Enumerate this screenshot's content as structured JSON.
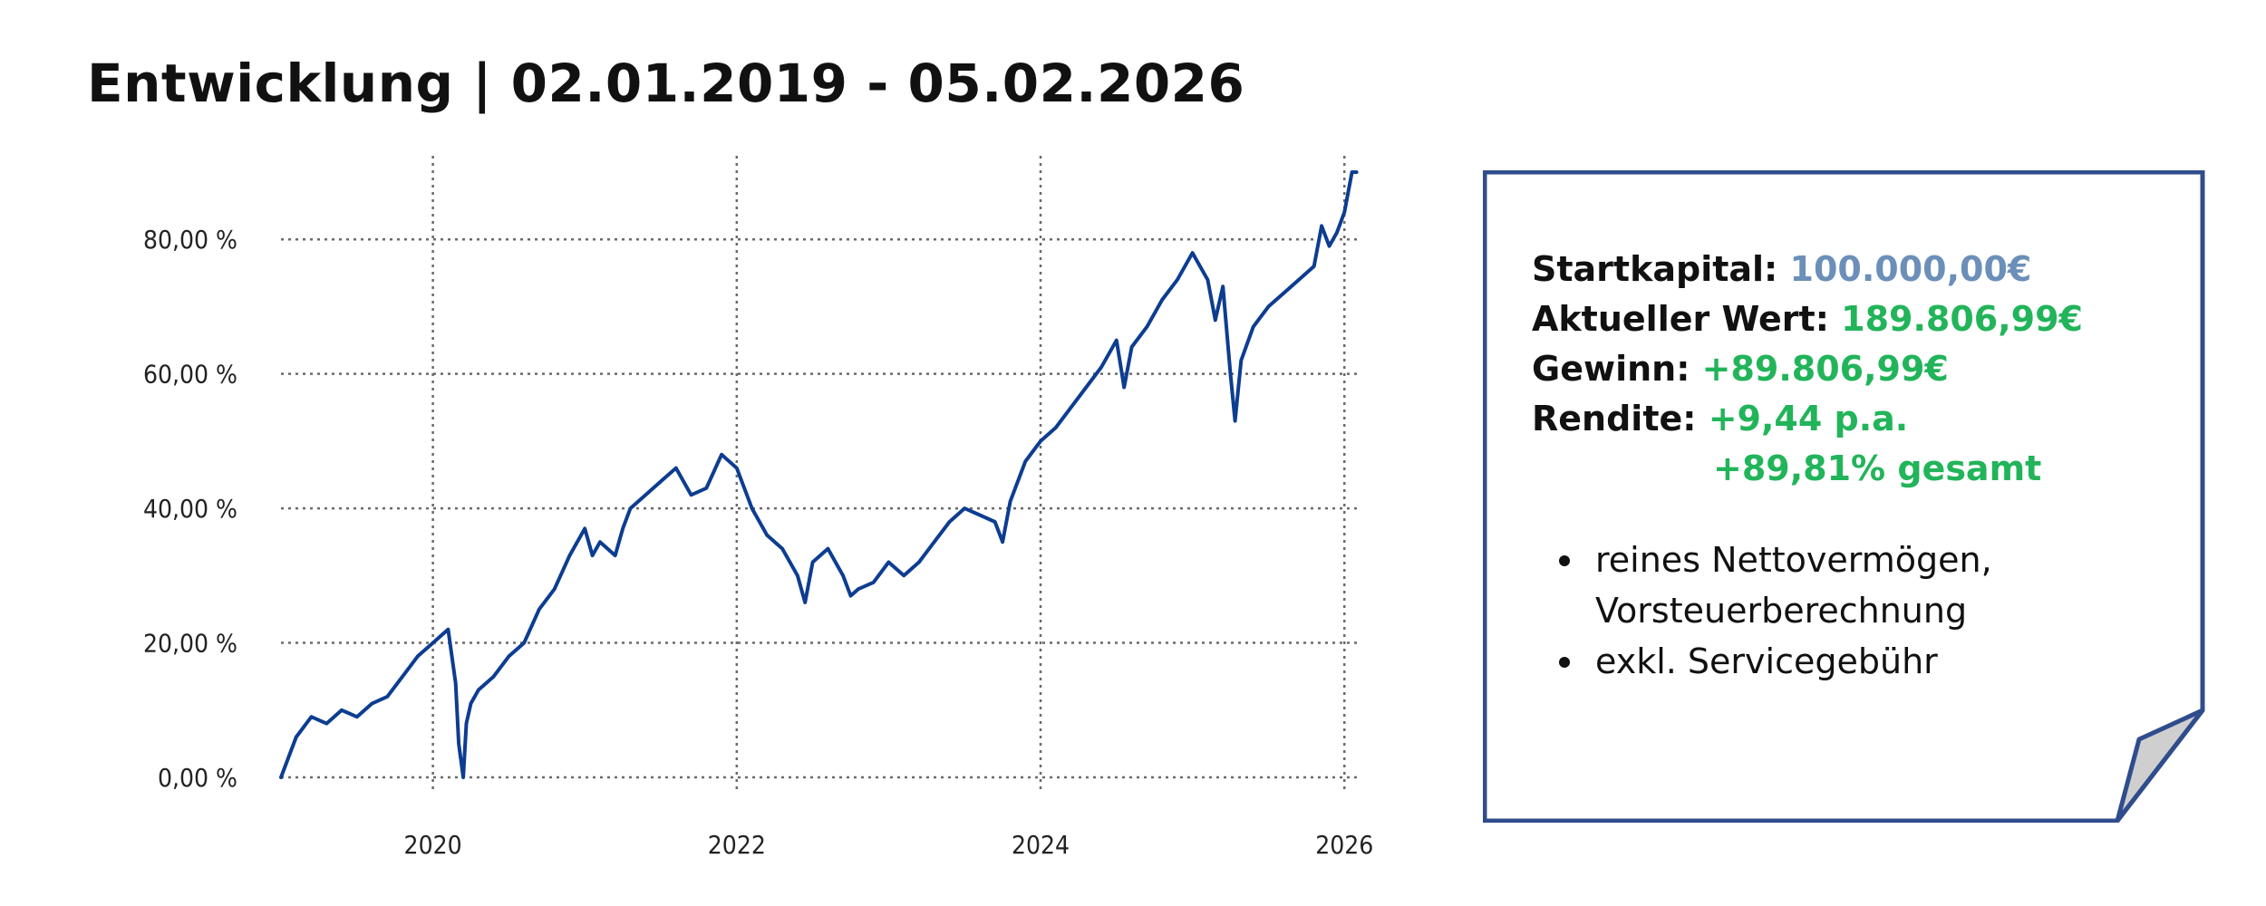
{
  "title": "Entwicklung | 02.01.2019 - 05.02.2026",
  "chart_data": {
    "type": "line",
    "title": "Entwicklung | 02.01.2019 - 05.02.2026",
    "xlabel": "",
    "ylabel": "",
    "xlim": [
      2019.0,
      2026.1
    ],
    "ylim": [
      0,
      90
    ],
    "grid": true,
    "x_ticks": [
      2020,
      2022,
      2024,
      2026
    ],
    "x_tick_labels": [
      "2020",
      "2022",
      "2024",
      "2026"
    ],
    "y_ticks": [
      0,
      20,
      40,
      60,
      80
    ],
    "y_tick_labels": [
      "0,00 %",
      "20,00 %",
      "40,00 %",
      "60,00 %",
      "80,00 %"
    ],
    "line_color": "#0d3d91",
    "series": [
      {
        "x": [
          2019.0,
          2019.05,
          2019.1,
          2019.2,
          2019.3,
          2019.4,
          2019.5,
          2019.6,
          2019.7,
          2019.8,
          2019.9,
          2020.0,
          2020.05,
          2020.1,
          2020.15,
          2020.17,
          2020.2,
          2020.22,
          2020.25,
          2020.3,
          2020.4,
          2020.5,
          2020.6,
          2020.7,
          2020.8,
          2020.9,
          2021.0,
          2021.05,
          2021.1,
          2021.2,
          2021.25,
          2021.3,
          2021.4,
          2021.5,
          2021.6,
          2021.7,
          2021.8,
          2021.9,
          2021.95,
          2022.0,
          2022.1,
          2022.2,
          2022.3,
          2022.4,
          2022.45,
          2022.5,
          2022.6,
          2022.7,
          2022.75,
          2022.8,
          2022.9,
          2023.0,
          2023.1,
          2023.2,
          2023.3,
          2023.4,
          2023.5,
          2023.6,
          2023.7,
          2023.75,
          2023.8,
          2023.9,
          2024.0,
          2024.1,
          2024.2,
          2024.3,
          2024.4,
          2024.5,
          2024.55,
          2024.6,
          2024.7,
          2024.8,
          2024.9,
          2025.0,
          2025.1,
          2025.15,
          2025.2,
          2025.25,
          2025.28,
          2025.32,
          2025.4,
          2025.5,
          2025.6,
          2025.7,
          2025.8,
          2025.85,
          2025.9,
          2025.95,
          2026.0,
          2026.05,
          2026.08
        ],
        "values": [
          0,
          3,
          6,
          9,
          8,
          10,
          9,
          11,
          12,
          15,
          18,
          20,
          21,
          22,
          14,
          5,
          0,
          8,
          11,
          13,
          15,
          18,
          20,
          25,
          28,
          33,
          37,
          33,
          35,
          33,
          37,
          40,
          42,
          44,
          46,
          42,
          43,
          48,
          47,
          46,
          40,
          36,
          34,
          30,
          26,
          32,
          34,
          30,
          27,
          28,
          29,
          32,
          30,
          32,
          35,
          38,
          40,
          39,
          38,
          35,
          41,
          47,
          50,
          52,
          55,
          58,
          61,
          65,
          58,
          64,
          67,
          71,
          74,
          78,
          74,
          68,
          73,
          60,
          53,
          62,
          67,
          70,
          72,
          74,
          76,
          82,
          79,
          81,
          84,
          90,
          90
        ]
      }
    ]
  },
  "note": {
    "startkapital_label": "Startkapital:",
    "startkapital_value": "100.000,00€",
    "aktueller_wert_label": "Aktueller Wert:",
    "aktueller_wert_value": "189.806,99€",
    "gewinn_label": "Gewinn:",
    "gewinn_value": "+89.806,99€",
    "rendite_label": "Rendite:",
    "rendite_pa": "+9,44 p.a.",
    "rendite_gesamt": "+89,81% gesamt",
    "bullets": [
      "reines Nettovermögen,",
      "Vorsteuerberechnung",
      "exkl. Servicegebühr"
    ],
    "value_color": "#22b45a",
    "startkapital_color": "#6b8fb8",
    "border_color": "#2f4d8c"
  }
}
